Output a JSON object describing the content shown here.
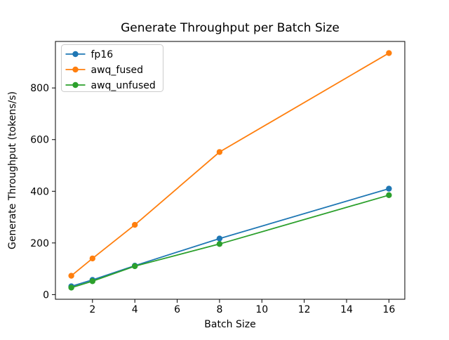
{
  "figure": {
    "background": "#ffffff",
    "spine_color": "#000000",
    "legend_border_color": "#cccccc"
  },
  "chart_data": {
    "type": "line",
    "title": "Generate Throughput per Batch Size",
    "xlabel": "Batch Size",
    "ylabel": "Generate Throughput (tokens/s)",
    "x": [
      1,
      2,
      4,
      8,
      16
    ],
    "series": [
      {
        "name": "fp16",
        "color": "#1f77b4",
        "values": [
          32,
          57,
          112,
          217,
          410
        ]
      },
      {
        "name": "awq_fused",
        "color": "#ff7f0e",
        "values": [
          73,
          140,
          270,
          552,
          935
        ]
      },
      {
        "name": "awq_unfused",
        "color": "#2ca02c",
        "values": [
          27,
          52,
          110,
          196,
          385
        ]
      }
    ],
    "xlim": [
      0.25,
      16.75
    ],
    "ylim": [
      -18,
      980
    ],
    "xticks": [
      2,
      4,
      6,
      8,
      10,
      12,
      14,
      16
    ],
    "yticks": [
      0,
      200,
      400,
      600,
      800
    ],
    "grid": false,
    "legend_position": "upper left",
    "marker": "circle",
    "line_width": 1.8,
    "marker_radius": 4.2
  }
}
